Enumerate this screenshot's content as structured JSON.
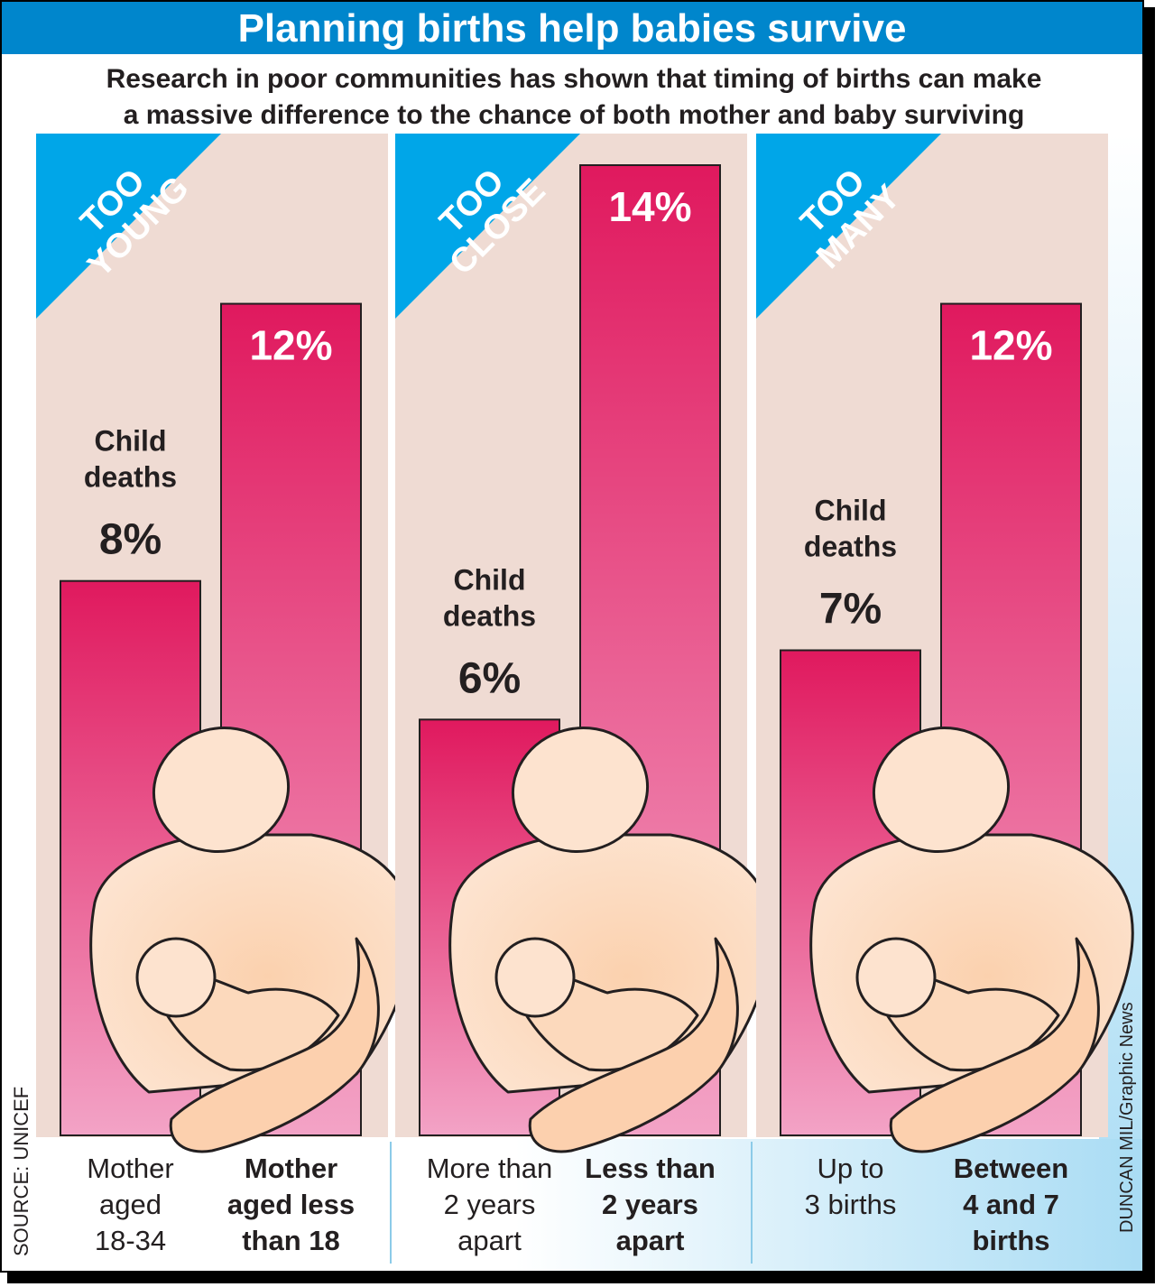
{
  "title": "Planning births help babies survive",
  "subtitle_lines": [
    "Research in poor communities has shown that timing of births can make",
    "a massive difference to the chance of both mother and baby surviving"
  ],
  "source": "SOURCE: UNICEF",
  "credit": "DUNCAN MIL/Graphic News",
  "colors": {
    "title_bar": "#0086cc",
    "panel_bg": "#efdbd3",
    "bar_top": "#e0195e",
    "bar_bottom": "#f3a3c6",
    "banner": "#00a6e8",
    "figure_skin": "#fbd1ae"
  },
  "chart_data": {
    "type": "bar",
    "ylim": [
      0,
      14
    ],
    "series_label": "Child deaths",
    "panels": [
      {
        "banner_lines": [
          "TOO",
          "YOUNG"
        ],
        "bars": [
          {
            "label_lines": [
              "Mother",
              "aged",
              "18-34"
            ],
            "value": 8,
            "value_label": "8%",
            "annotation_lines": [
              "Child",
              "deaths"
            ],
            "bold": false
          },
          {
            "label_lines": [
              "Mother",
              "aged less",
              "than 18"
            ],
            "value": 12,
            "value_label": "12%",
            "bold": true
          }
        ]
      },
      {
        "banner_lines": [
          "TOO",
          "CLOSE"
        ],
        "bars": [
          {
            "label_lines": [
              "More than",
              "2  years",
              "apart"
            ],
            "value": 6,
            "value_label": "6%",
            "annotation_lines": [
              "Child",
              "deaths"
            ],
            "bold": false
          },
          {
            "label_lines": [
              "Less than",
              "2  years",
              "apart"
            ],
            "value": 14,
            "value_label": "14%",
            "bold": true
          }
        ]
      },
      {
        "banner_lines": [
          "TOO",
          "MANY"
        ],
        "bars": [
          {
            "label_lines": [
              "Up to",
              "3 births"
            ],
            "value": 7,
            "value_label": "7%",
            "annotation_lines": [
              "Child",
              "deaths"
            ],
            "bold": false
          },
          {
            "label_lines": [
              "Between",
              "4 and 7",
              "births"
            ],
            "value": 12,
            "value_label": "12%",
            "bold": true
          }
        ]
      }
    ]
  }
}
